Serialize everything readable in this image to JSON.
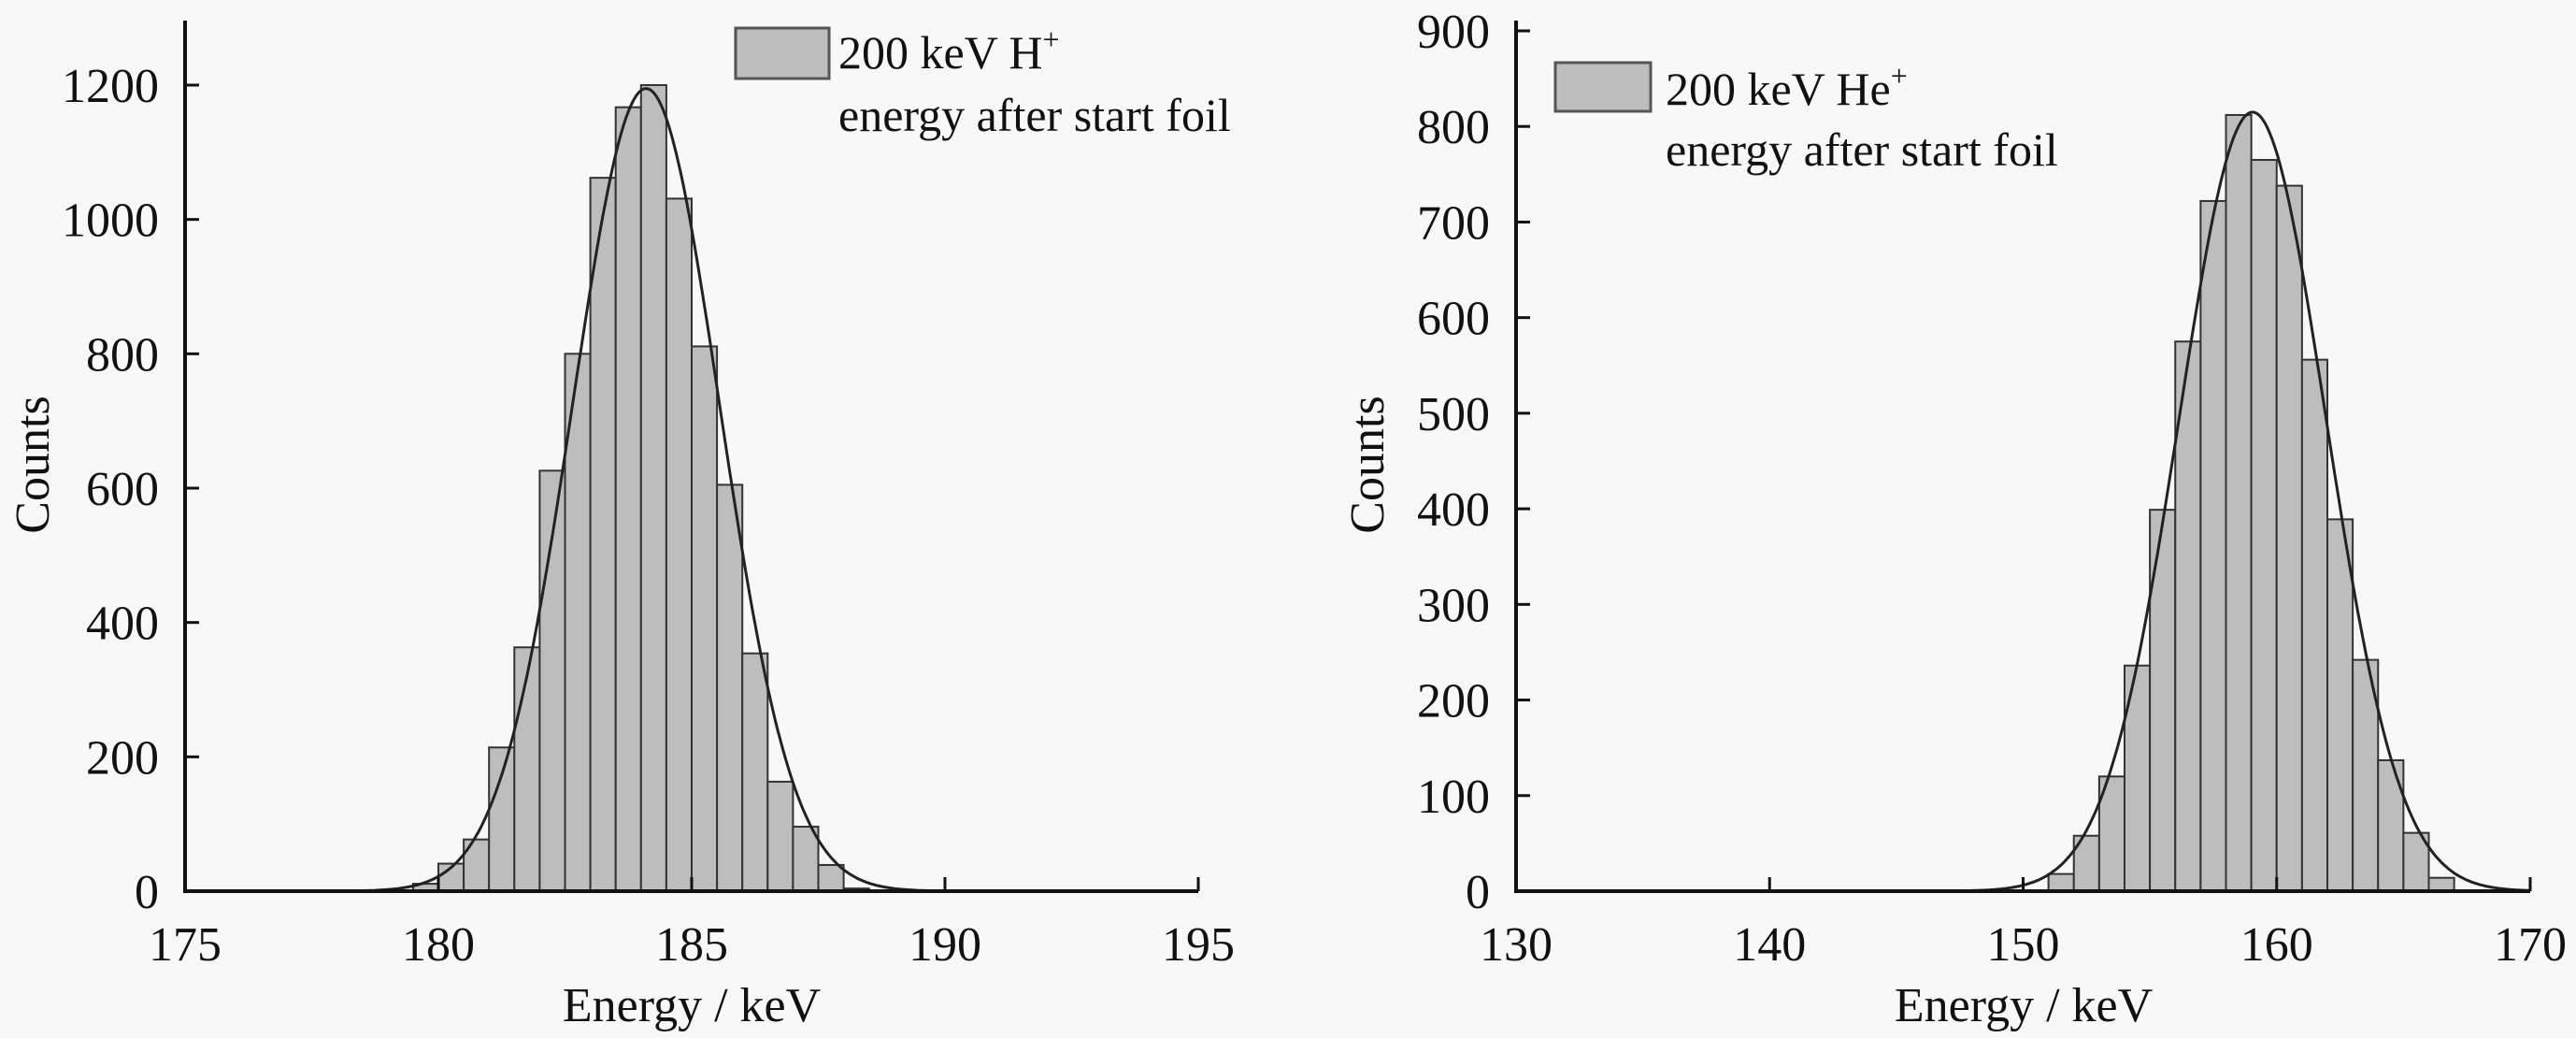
{
  "chart_data": [
    {
      "type": "bar",
      "xlabel": "Energy / keV",
      "ylabel": "Counts",
      "xlim": [
        175,
        195
      ],
      "ylim": [
        0,
        1200
      ],
      "xticks": [
        "175",
        "180",
        "185",
        "190",
        "195"
      ],
      "yticks": [
        "0",
        "200",
        "400",
        "600",
        "800",
        "1000",
        "1200"
      ],
      "grid": false,
      "legend": {
        "position": "top-right",
        "label_line1": "200 keV H",
        "superscript": "+",
        "label_line2": "energy after start foil"
      },
      "bin_width": 0.5,
      "bin_starts": [
        179.5,
        180,
        180.5,
        181,
        181.5,
        182,
        182.5,
        183,
        183.5,
        184,
        184.5,
        185,
        185.5,
        186,
        186.5,
        187,
        187.5,
        188
      ],
      "values": [
        11,
        41,
        77,
        214,
        363,
        626,
        800,
        1062,
        1167,
        1200,
        1031,
        811,
        605,
        354,
        163,
        96,
        39,
        4
      ],
      "fit": {
        "type": "gaussian",
        "mean": 184.1,
        "sigma": 1.45,
        "amplitude": 1195
      },
      "colors": {
        "bar": "#bdbdbd",
        "edge": "#333333",
        "fit": "#222222"
      }
    },
    {
      "type": "bar",
      "xlabel": "Energy / keV",
      "ylabel": "Counts",
      "xlim": [
        130,
        170
      ],
      "ylim": [
        0,
        900
      ],
      "xticks": [
        "130",
        "140",
        "150",
        "160",
        "170"
      ],
      "yticks": [
        "0",
        "100",
        "200",
        "300",
        "400",
        "500",
        "600",
        "700",
        "800",
        "900"
      ],
      "grid": false,
      "legend": {
        "position": "top-left",
        "label_line1": "200 keV He",
        "superscript": "+",
        "label_line2": "energy after start foil"
      },
      "bin_width": 1,
      "bin_starts": [
        151,
        152,
        153,
        154,
        155,
        156,
        157,
        158,
        159,
        160,
        161,
        162,
        163,
        164,
        165,
        166
      ],
      "values": [
        18,
        58,
        120,
        236,
        399,
        575,
        722,
        812,
        765,
        738,
        556,
        389,
        242,
        137,
        61,
        14
      ],
      "fit": {
        "type": "gaussian",
        "mean": 159.05,
        "sigma": 2.9,
        "amplitude": 815
      },
      "colors": {
        "bar": "#bdbdbd",
        "edge": "#333333",
        "fit": "#222222"
      }
    }
  ]
}
